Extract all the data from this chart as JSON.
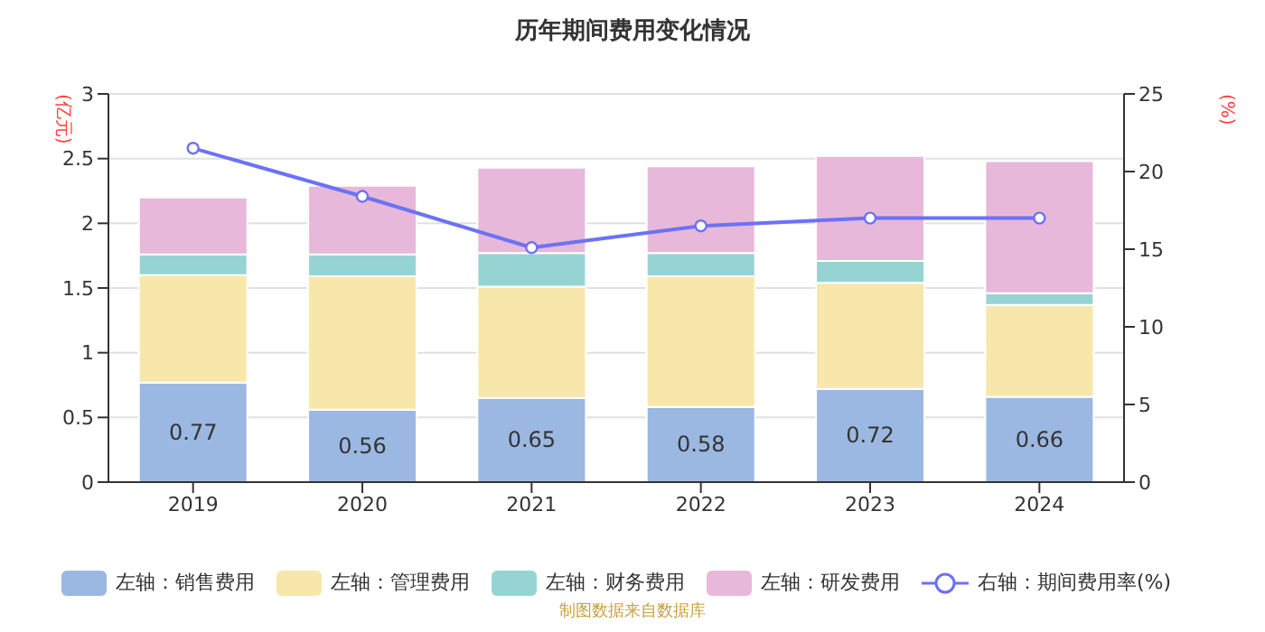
{
  "chart_data": {
    "type": "bar",
    "title": "历年期间费用变化情况",
    "ylabel": "(亿元)",
    "y2label": "(%)",
    "categories": [
      "2019",
      "2020",
      "2021",
      "2022",
      "2023",
      "2024"
    ],
    "stacked": true,
    "series": [
      {
        "name": "左轴：销售费用",
        "color": "#9bb8e2",
        "values": [
          0.77,
          0.56,
          0.65,
          0.58,
          0.72,
          0.66
        ],
        "value_labels": [
          "0.77",
          "0.56",
          "0.65",
          "0.58",
          "0.72",
          "0.66"
        ]
      },
      {
        "name": "左轴：管理费用",
        "color": "#f8e7aa",
        "values": [
          0.83,
          1.03,
          0.86,
          1.01,
          0.82,
          0.71
        ]
      },
      {
        "name": "左轴：财务费用",
        "color": "#96d4d4",
        "values": [
          0.16,
          0.17,
          0.26,
          0.18,
          0.17,
          0.09
        ]
      },
      {
        "name": "左轴：研发费用",
        "color": "#e7b8d9",
        "values": [
          0.44,
          0.53,
          0.66,
          0.67,
          0.81,
          1.02
        ]
      },
      {
        "name": "右轴：期间费用率(%)",
        "type": "line",
        "axis": "y2",
        "color": "#6b72f5",
        "marker": "circle",
        "values": [
          21.5,
          18.4,
          15.1,
          16.5,
          17.0,
          17.0
        ]
      }
    ],
    "ylim": [
      0,
      3
    ],
    "yticks": [
      0,
      0.5,
      1,
      1.5,
      2,
      2.5,
      3
    ],
    "y2lim": [
      0,
      25
    ],
    "y2ticks": [
      0,
      5,
      10,
      15,
      20,
      25
    ],
    "grid": "y",
    "legend": "bottom",
    "annotations": [
      "制图数据来自数据库"
    ]
  }
}
